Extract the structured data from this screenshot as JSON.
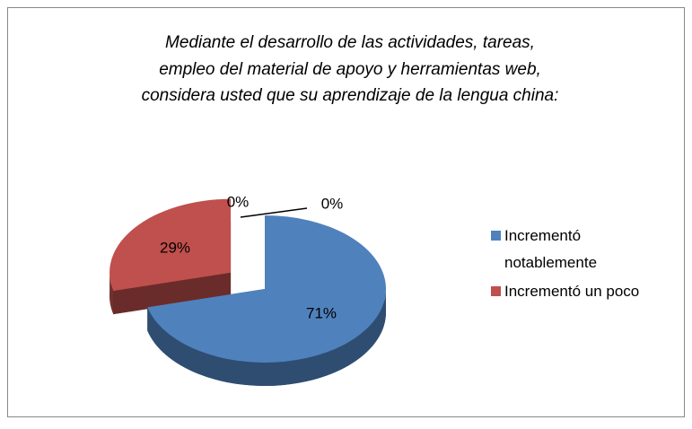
{
  "chart_data": {
    "type": "pie3d",
    "title": [
      "Mediante el desarrollo de las actividades, tareas,",
      "empleo del material de apoyo y herramientas web,",
      "considera usted que su aprendizaje de la lengua china:"
    ],
    "categories": [
      "Incrementó notablemente",
      "Incrementó un poco",
      null,
      null
    ],
    "values": [
      71,
      29,
      0,
      0
    ],
    "value_labels": [
      "71%",
      "29%",
      "0%",
      "0%"
    ],
    "colors": [
      "#4f81bd",
      "#c0504d",
      "#9bbb59",
      "#8064a2"
    ],
    "legend": "right"
  }
}
